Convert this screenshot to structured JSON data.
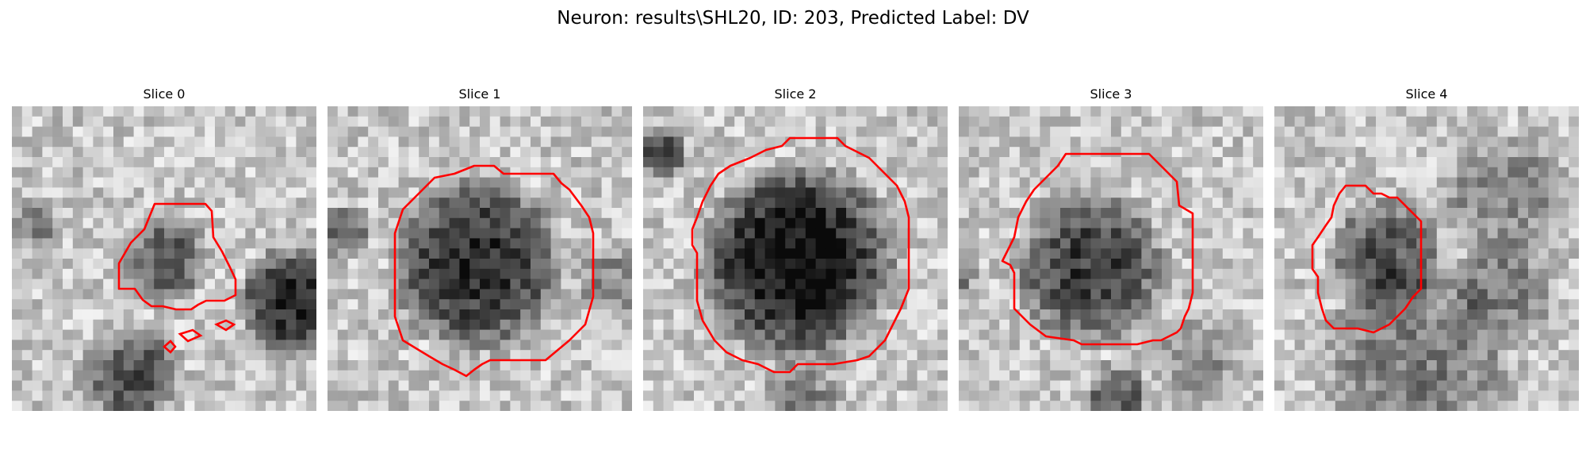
{
  "figure": {
    "title": "Neuron: results\\SHL20, ID: 203, Predicted Label: DV",
    "contour_color": "#ff0000"
  },
  "panels": [
    {
      "title": "Slice 0"
    },
    {
      "title": "Slice 1"
    },
    {
      "title": "Slice 2"
    },
    {
      "title": "Slice 3"
    },
    {
      "title": "Slice 4"
    }
  ]
}
